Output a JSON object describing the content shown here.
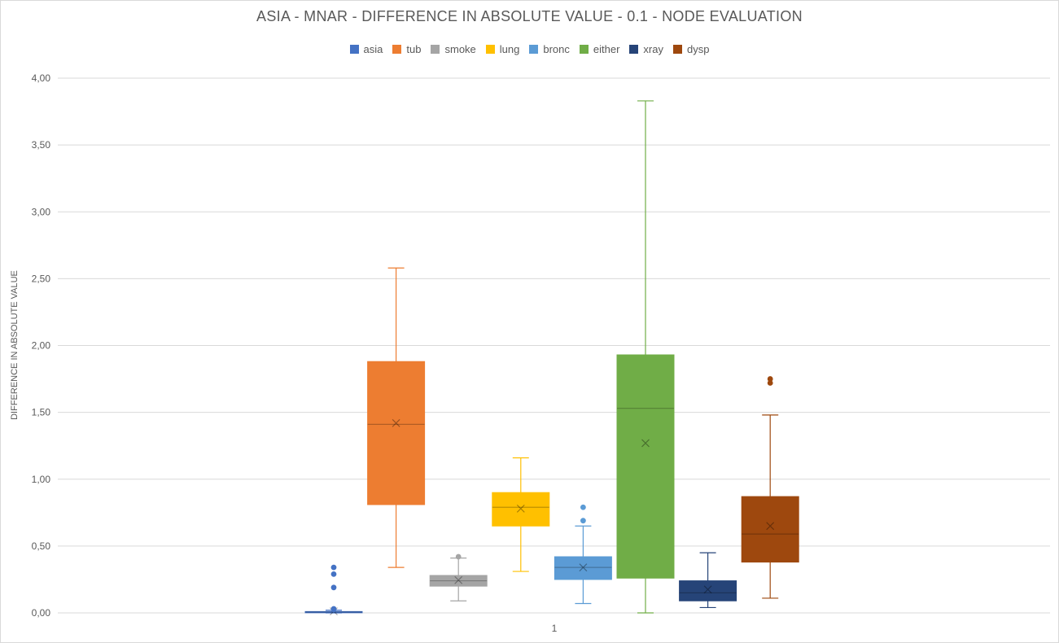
{
  "chart_data": {
    "type": "box",
    "title": "ASIA - MNAR - DIFFERENCE IN ABSOLUTE VALUE - 0.1 - NODE EVALUATION",
    "xlabel": "",
    "ylabel": "DIFFERENCE IN ABSOLUTE VALUE",
    "ylim": [
      0,
      4
    ],
    "yticks": [
      "0,00",
      "0,50",
      "1,00",
      "1,50",
      "2,00",
      "2,50",
      "3,00",
      "3,50",
      "4,00"
    ],
    "yvalues": [
      0,
      0.5,
      1,
      1.5,
      2,
      2.5,
      3,
      3.5,
      4
    ],
    "categories": [
      "1"
    ],
    "legend_position": "top",
    "grid": true,
    "series": [
      {
        "name": "asia",
        "color": "#4472c4",
        "min": 0.0,
        "q1": 0.003,
        "median": 0.006,
        "q3": 0.01,
        "max": 0.02,
        "mean": 0.012,
        "outliers": [
          0.34,
          0.29,
          0.19,
          0.03,
          0.025
        ]
      },
      {
        "name": "tub",
        "color": "#ed7d31",
        "min": 0.34,
        "q1": 0.81,
        "median": 1.41,
        "q3": 1.88,
        "max": 2.58,
        "mean": 1.42,
        "outliers": []
      },
      {
        "name": "smoke",
        "color": "#a5a5a5",
        "min": 0.09,
        "q1": 0.2,
        "median": 0.24,
        "q3": 0.28,
        "max": 0.41,
        "mean": 0.245,
        "outliers": [
          0.42
        ]
      },
      {
        "name": "lung",
        "color": "#ffc000",
        "min": 0.31,
        "q1": 0.65,
        "median": 0.79,
        "q3": 0.9,
        "max": 1.16,
        "mean": 0.78,
        "outliers": []
      },
      {
        "name": "bronc",
        "color": "#5b9bd5",
        "min": 0.07,
        "q1": 0.25,
        "median": 0.34,
        "q3": 0.42,
        "max": 0.65,
        "mean": 0.34,
        "outliers": [
          0.69,
          0.79
        ]
      },
      {
        "name": "either",
        "color": "#70ad47",
        "min": 0.0,
        "q1": 0.26,
        "median": 1.53,
        "q3": 1.93,
        "max": 3.83,
        "mean": 1.27,
        "outliers": []
      },
      {
        "name": "xray",
        "color": "#264478",
        "min": 0.04,
        "q1": 0.09,
        "median": 0.15,
        "q3": 0.24,
        "max": 0.45,
        "mean": 0.175,
        "outliers": []
      },
      {
        "name": "dysp",
        "color": "#9e480e",
        "min": 0.11,
        "q1": 0.38,
        "median": 0.59,
        "q3": 0.87,
        "max": 1.48,
        "mean": 0.65,
        "outliers": [
          1.72,
          1.75
        ]
      }
    ]
  }
}
